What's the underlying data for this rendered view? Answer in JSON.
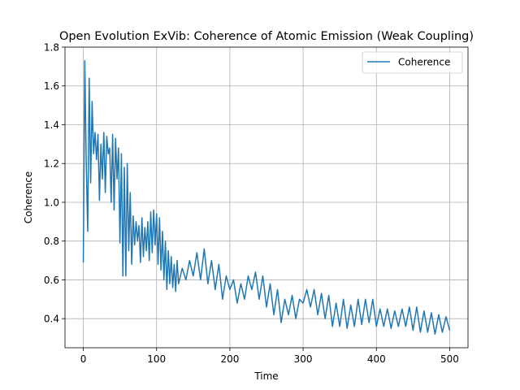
{
  "chart_data": {
    "type": "line",
    "title": "Open Evolution ExVib: Coherence of Atomic Emission (Weak Coupling)",
    "xlabel": "Time",
    "ylabel": "Coherence",
    "xlim": [
      -25,
      525
    ],
    "ylim": [
      0.25,
      1.8
    ],
    "xticks": [
      0,
      100,
      200,
      300,
      400,
      500
    ],
    "yticks": [
      0.4,
      0.6,
      0.8,
      1.0,
      1.2,
      1.4,
      1.6,
      1.8
    ],
    "xtick_labels": [
      "0",
      "100",
      "200",
      "300",
      "400",
      "500"
    ],
    "ytick_labels": [
      "0.4",
      "0.6",
      "0.8",
      "1.0",
      "1.2",
      "1.4",
      "1.6",
      "1.8"
    ],
    "grid": true,
    "legend_position": "top-right",
    "series": [
      {
        "name": "Coherence",
        "color": "#1f77b4",
        "x": [
          0,
          2,
          4,
          6,
          8,
          10,
          12,
          14,
          16,
          18,
          20,
          22,
          24,
          26,
          28,
          30,
          32,
          34,
          36,
          38,
          40,
          42,
          44,
          46,
          48,
          50,
          52,
          54,
          56,
          58,
          60,
          62,
          64,
          66,
          68,
          70,
          72,
          74,
          76,
          78,
          80,
          82,
          84,
          86,
          88,
          90,
          92,
          94,
          96,
          98,
          100,
          102,
          104,
          106,
          108,
          110,
          112,
          114,
          116,
          118,
          120,
          122,
          124,
          126,
          128,
          130,
          135,
          140,
          145,
          150,
          155,
          160,
          165,
          170,
          175,
          180,
          185,
          190,
          195,
          200,
          205,
          210,
          215,
          220,
          225,
          230,
          235,
          240,
          245,
          250,
          255,
          260,
          265,
          270,
          275,
          280,
          285,
          290,
          295,
          300,
          305,
          310,
          315,
          320,
          325,
          330,
          335,
          340,
          345,
          350,
          355,
          360,
          365,
          370,
          375,
          380,
          385,
          390,
          395,
          400,
          405,
          410,
          415,
          420,
          425,
          430,
          435,
          440,
          445,
          450,
          455,
          460,
          465,
          470,
          475,
          480,
          485,
          490,
          495,
          500
        ],
        "y": [
          0.69,
          1.73,
          1.2,
          0.85,
          1.64,
          1.1,
          1.52,
          1.25,
          1.36,
          1.22,
          1.35,
          1.01,
          1.3,
          1.12,
          1.36,
          1.05,
          1.34,
          1.25,
          1.28,
          1.0,
          1.35,
          0.96,
          1.33,
          1.12,
          1.28,
          0.79,
          1.25,
          0.62,
          1.18,
          0.62,
          1.2,
          0.75,
          1.05,
          0.68,
          0.93,
          0.78,
          0.9,
          0.8,
          0.88,
          0.69,
          0.92,
          0.72,
          0.87,
          0.75,
          0.9,
          0.7,
          0.95,
          0.74,
          0.96,
          0.78,
          0.94,
          0.68,
          0.92,
          0.65,
          0.85,
          0.6,
          0.8,
          0.55,
          0.75,
          0.58,
          0.72,
          0.56,
          0.68,
          0.54,
          0.7,
          0.58,
          0.66,
          0.6,
          0.7,
          0.62,
          0.74,
          0.6,
          0.76,
          0.58,
          0.7,
          0.55,
          0.68,
          0.5,
          0.62,
          0.55,
          0.6,
          0.48,
          0.58,
          0.5,
          0.62,
          0.55,
          0.64,
          0.5,
          0.62,
          0.46,
          0.58,
          0.42,
          0.55,
          0.38,
          0.5,
          0.42,
          0.52,
          0.4,
          0.5,
          0.48,
          0.55,
          0.46,
          0.55,
          0.42,
          0.53,
          0.4,
          0.52,
          0.36,
          0.48,
          0.36,
          0.5,
          0.35,
          0.47,
          0.36,
          0.5,
          0.37,
          0.5,
          0.38,
          0.5,
          0.36,
          0.45,
          0.36,
          0.45,
          0.35,
          0.44,
          0.36,
          0.45,
          0.36,
          0.46,
          0.34,
          0.46,
          0.33,
          0.44,
          0.33,
          0.43,
          0.32,
          0.42,
          0.33,
          0.41,
          0.34
        ]
      }
    ]
  }
}
